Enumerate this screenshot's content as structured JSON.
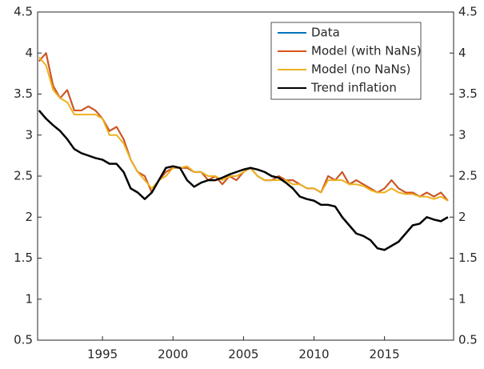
{
  "chart_data": {
    "type": "line",
    "x": [
      1990.5,
      1991,
      1991.5,
      1992,
      1992.5,
      1993,
      1993.5,
      1994,
      1994.5,
      1995,
      1995.5,
      1996,
      1996.5,
      1997,
      1997.5,
      1998,
      1998.5,
      1999,
      1999.5,
      2000,
      2000.5,
      2001,
      2001.5,
      2002,
      2002.5,
      2003,
      2003.5,
      2004,
      2004.5,
      2005,
      2005.5,
      2006,
      2006.5,
      2007,
      2007.5,
      2008,
      2008.5,
      2009,
      2009.5,
      2010,
      2010.5,
      2011,
      2011.5,
      2012,
      2012.5,
      2013,
      2013.5,
      2014,
      2014.5,
      2015,
      2015.5,
      2016,
      2016.5,
      2017,
      2017.5,
      2018,
      2018.5,
      2019,
      2019.5
    ],
    "series": [
      {
        "name": "Data",
        "color": "#0072bd",
        "values": [
          3.9,
          4.0,
          3.6,
          3.45,
          3.55,
          3.3,
          3.3,
          3.35,
          3.3,
          3.2,
          3.05,
          3.1,
          2.95,
          2.7,
          2.55,
          2.5,
          2.3,
          2.45,
          2.55,
          2.6,
          2.6,
          2.6,
          2.55,
          2.55,
          2.45,
          2.5,
          2.4,
          2.5,
          2.45,
          2.55,
          2.6,
          2.5,
          2.45,
          2.45,
          2.5,
          2.45,
          2.45,
          2.4,
          2.35,
          2.35,
          2.3,
          2.5,
          2.45,
          2.55,
          2.4,
          2.45,
          2.4,
          2.35,
          2.3,
          2.35,
          2.45,
          2.35,
          2.3,
          2.3,
          2.25,
          2.3,
          2.25,
          2.3,
          2.2
        ]
      },
      {
        "name": "Model (with NaNs)",
        "color": "#d95319",
        "values": [
          3.9,
          4.0,
          3.6,
          3.45,
          3.55,
          3.3,
          3.3,
          3.35,
          3.3,
          3.2,
          3.05,
          3.1,
          2.95,
          2.7,
          2.55,
          2.5,
          2.3,
          2.45,
          2.55,
          2.6,
          2.6,
          2.6,
          2.55,
          2.55,
          2.45,
          2.5,
          2.4,
          2.5,
          2.45,
          2.55,
          2.6,
          2.5,
          2.45,
          2.45,
          2.5,
          2.45,
          2.45,
          2.4,
          2.35,
          2.35,
          2.3,
          2.5,
          2.45,
          2.55,
          2.4,
          2.45,
          2.4,
          2.35,
          2.3,
          2.35,
          2.45,
          2.35,
          2.3,
          2.3,
          2.25,
          2.3,
          2.25,
          2.3,
          2.2
        ]
      },
      {
        "name": "Model (no NaNs)",
        "color": "#edb120",
        "values": [
          3.95,
          3.85,
          3.55,
          3.45,
          3.4,
          3.25,
          3.25,
          3.25,
          3.25,
          3.2,
          3.0,
          3.0,
          2.9,
          2.7,
          2.55,
          2.45,
          2.35,
          2.45,
          2.5,
          2.6,
          2.6,
          2.62,
          2.55,
          2.55,
          2.5,
          2.5,
          2.45,
          2.5,
          2.5,
          2.55,
          2.6,
          2.5,
          2.45,
          2.45,
          2.45,
          2.45,
          2.4,
          2.4,
          2.35,
          2.35,
          2.3,
          2.45,
          2.45,
          2.45,
          2.4,
          2.4,
          2.38,
          2.33,
          2.3,
          2.3,
          2.35,
          2.3,
          2.28,
          2.28,
          2.25,
          2.25,
          2.22,
          2.25,
          2.2
        ]
      },
      {
        "name": "Trend inflation",
        "color": "#000000",
        "values": [
          3.3,
          3.2,
          3.12,
          3.05,
          2.95,
          2.83,
          2.78,
          2.75,
          2.72,
          2.7,
          2.65,
          2.65,
          2.55,
          2.35,
          2.3,
          2.22,
          2.3,
          2.45,
          2.6,
          2.62,
          2.6,
          2.45,
          2.37,
          2.42,
          2.45,
          2.45,
          2.48,
          2.52,
          2.55,
          2.58,
          2.6,
          2.58,
          2.55,
          2.5,
          2.48,
          2.42,
          2.35,
          2.25,
          2.22,
          2.2,
          2.15,
          2.15,
          2.13,
          2.0,
          1.9,
          1.8,
          1.77,
          1.72,
          1.62,
          1.6,
          1.65,
          1.7,
          1.8,
          1.9,
          1.92,
          2.0,
          1.97,
          1.95,
          2.0
        ]
      }
    ],
    "xlim": [
      1990.4,
      2019.9
    ],
    "xticks": [
      1995,
      2000,
      2005,
      2010,
      2015
    ],
    "ylim": [
      0.5,
      4.5
    ],
    "yticks": [
      0.5,
      1,
      1.5,
      2,
      2.5,
      3,
      3.5,
      4,
      4.5
    ],
    "y2lim": [
      0.5,
      4.5
    ],
    "y2ticks": [
      0.5,
      1,
      1.5,
      2,
      2.5,
      3,
      3.5,
      4,
      4.5
    ],
    "legend": "top-right"
  }
}
